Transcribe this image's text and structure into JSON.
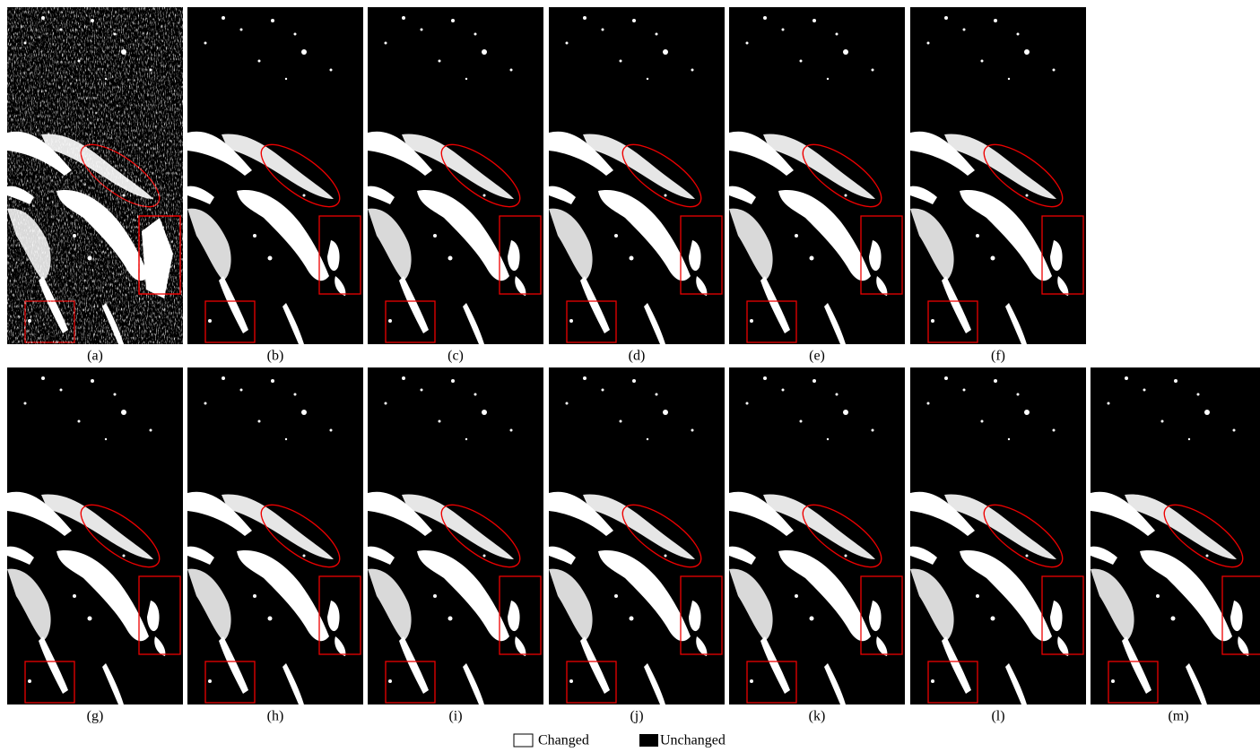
{
  "figure": {
    "panels": [
      "(a)",
      "(b)",
      "(c)",
      "(d)",
      "(e)",
      "(f)",
      "(g)",
      "(h)",
      "(i)",
      "(j)",
      "(k)",
      "(l)",
      "(m)"
    ]
  },
  "legend": {
    "changed": "Changed",
    "unchanged": "Unchanged"
  }
}
